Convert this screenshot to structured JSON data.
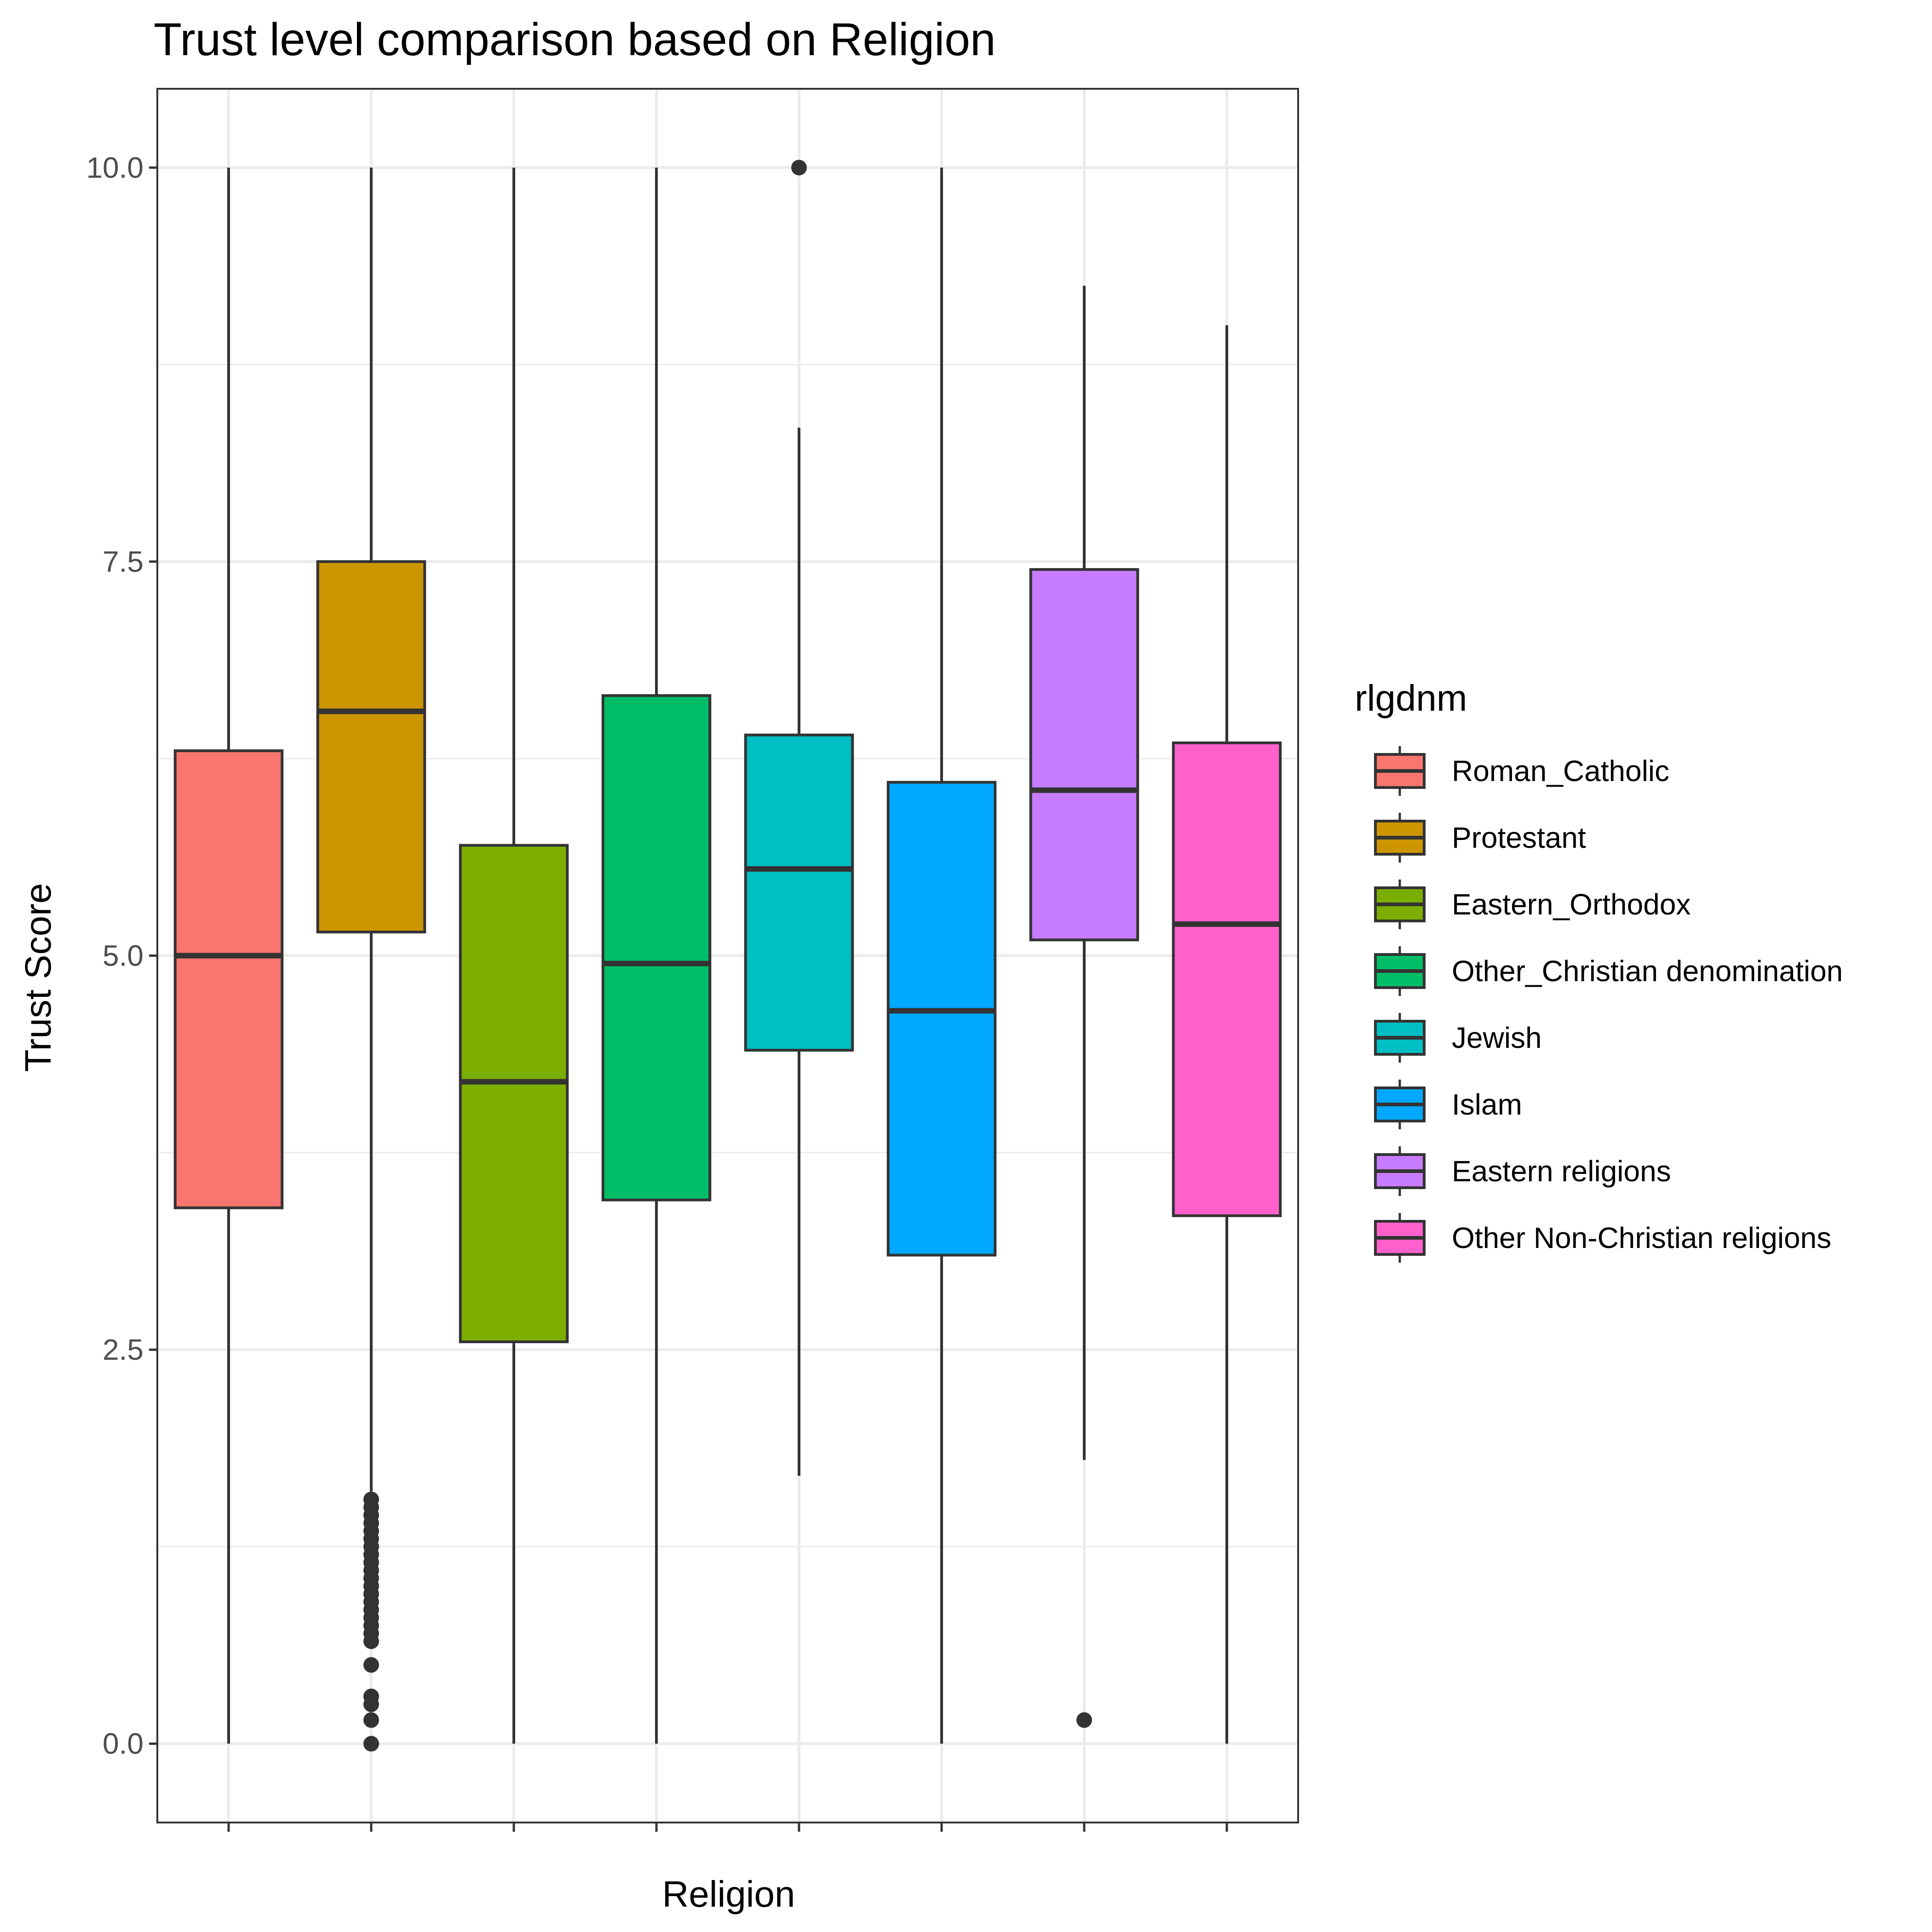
{
  "chart_data": {
    "type": "boxplot",
    "title": "Trust level comparison based on Religion",
    "xlabel": "Religion",
    "ylabel": "Trust Score",
    "ylim": [
      -0.5,
      10.5
    ],
    "y_ticks": [
      0,
      2.5,
      5,
      7.5,
      10
    ],
    "y_tick_labels": [
      "0.0",
      "2.5",
      "5.0",
      "7.5",
      "10.0"
    ],
    "grid": true,
    "legend": {
      "title": "rlgdnm",
      "position": "right"
    },
    "categories": [
      "Roman_Catholic",
      "Protestant",
      "Eastern_Orthodox",
      "Other_Christian denomination",
      "Jewish",
      "Islam",
      "Eastern religions",
      "Other Non-Christian religions"
    ],
    "colors": [
      "#F8766D",
      "#CD9600",
      "#7CAE00",
      "#00BE67",
      "#00BFC4",
      "#00A9FF",
      "#C77CFF",
      "#FF61CC"
    ],
    "series": [
      {
        "name": "Roman_Catholic",
        "min": 0,
        "q1": 3.4,
        "median": 5.0,
        "q3": 6.3,
        "max": 10,
        "outliers": []
      },
      {
        "name": "Protestant",
        "min": 1.6,
        "q1": 5.15,
        "median": 6.55,
        "q3": 7.5,
        "max": 10,
        "outliers": [
          0,
          0.15,
          0.25,
          0.3,
          0.5,
          0.65,
          0.7,
          0.75,
          0.8,
          0.85,
          0.9,
          0.95,
          1.0,
          1.05,
          1.1,
          1.15,
          1.2,
          1.25,
          1.3,
          1.35,
          1.4,
          1.45,
          1.5,
          1.55
        ]
      },
      {
        "name": "Eastern_Orthodox",
        "min": 0,
        "q1": 2.55,
        "median": 4.2,
        "q3": 5.7,
        "max": 10,
        "outliers": []
      },
      {
        "name": "Other_Christian denomination",
        "min": 0,
        "q1": 3.45,
        "median": 4.95,
        "q3": 6.65,
        "max": 10,
        "outliers": []
      },
      {
        "name": "Jewish",
        "min": 1.7,
        "q1": 4.4,
        "median": 5.55,
        "q3": 6.4,
        "max": 8.35,
        "outliers": [
          10
        ]
      },
      {
        "name": "Islam",
        "min": 0,
        "q1": 3.1,
        "median": 4.65,
        "q3": 6.1,
        "max": 10,
        "outliers": []
      },
      {
        "name": "Eastern religions",
        "min": 1.8,
        "q1": 5.1,
        "median": 6.05,
        "q3": 7.45,
        "max": 9.25,
        "outliers": [
          0.15
        ]
      },
      {
        "name": "Other Non-Christian religions",
        "min": 0,
        "q1": 3.35,
        "median": 5.2,
        "q3": 6.35,
        "max": 9.0,
        "outliers": []
      }
    ]
  }
}
